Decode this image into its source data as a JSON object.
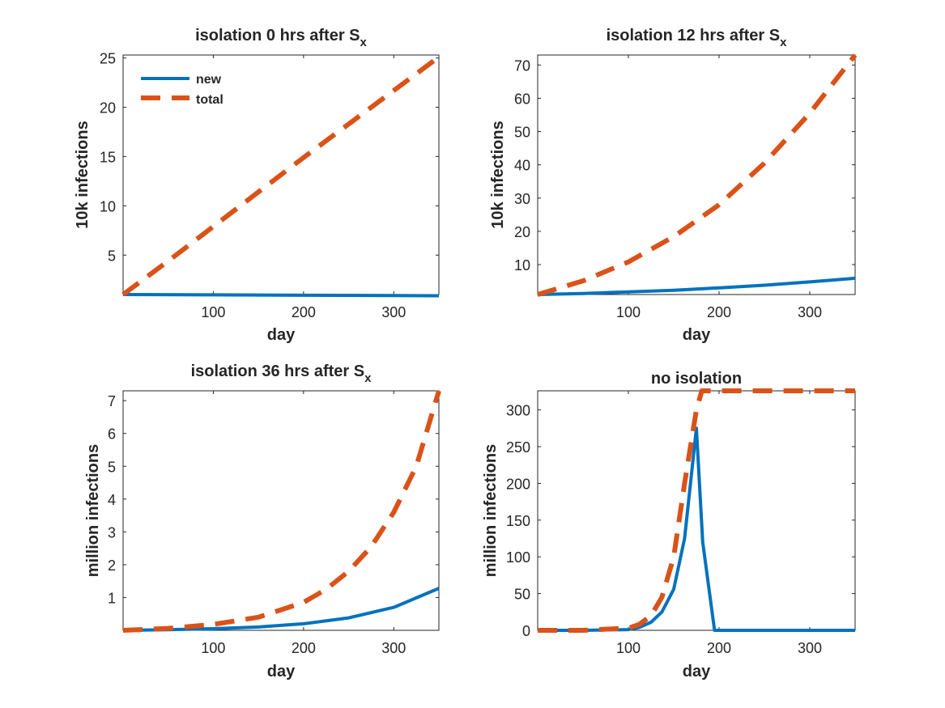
{
  "chart_data": [
    {
      "type": "line",
      "title": "isolation 0 hrs after S",
      "title_subscript": "x",
      "xlabel": "day",
      "ylabel": "10k infections",
      "xlim": [
        0,
        350
      ],
      "ylim": [
        1,
        25.3
      ],
      "xticks": [
        100,
        200,
        300
      ],
      "yticks": [
        5,
        10,
        15,
        20,
        25
      ],
      "legend": {
        "location": "top-left",
        "entries": [
          "new",
          "total"
        ]
      },
      "series": [
        {
          "name": "new",
          "x": [
            0,
            100,
            200,
            300,
            350
          ],
          "values": [
            1.0,
            0.97,
            0.93,
            0.9,
            0.88
          ]
        },
        {
          "name": "total",
          "x": [
            0,
            50,
            100,
            150,
            200,
            250,
            300,
            350
          ],
          "values": [
            1.0,
            4.4,
            7.9,
            11.4,
            14.9,
            18.3,
            21.7,
            25.1
          ]
        }
      ]
    },
    {
      "type": "line",
      "title": "isolation 12 hrs after S",
      "title_subscript": "x",
      "xlabel": "day",
      "ylabel": "10k infections",
      "xlim": [
        0,
        350
      ],
      "ylim": [
        1,
        73
      ],
      "xticks": [
        100,
        200,
        300
      ],
      "yticks": [
        10,
        20,
        30,
        40,
        50,
        60,
        70
      ],
      "series": [
        {
          "name": "new",
          "x": [
            0,
            50,
            100,
            150,
            200,
            250,
            300,
            350
          ],
          "values": [
            1.0,
            1.3,
            1.8,
            2.3,
            3.0,
            3.8,
            4.8,
            5.9
          ]
        },
        {
          "name": "total",
          "x": [
            0,
            50,
            100,
            150,
            200,
            250,
            300,
            350
          ],
          "values": [
            1.0,
            5.1,
            10.8,
            18.4,
            28.0,
            40.5,
            55.5,
            73.0
          ]
        }
      ]
    },
    {
      "type": "line",
      "title": "isolation 36 hrs after S",
      "title_subscript": "x",
      "xlabel": "day",
      "ylabel": "million infections",
      "xlim": [
        0,
        350
      ],
      "ylim": [
        0,
        7.3
      ],
      "xticks": [
        100,
        200,
        300
      ],
      "yticks": [
        1,
        2,
        3,
        4,
        5,
        6,
        7
      ],
      "series": [
        {
          "name": "new",
          "x": [
            0,
            50,
            100,
            150,
            200,
            250,
            300,
            350
          ],
          "values": [
            0.0,
            0.02,
            0.05,
            0.1,
            0.2,
            0.38,
            0.7,
            1.28
          ]
        },
        {
          "name": "total",
          "x": [
            0,
            50,
            100,
            150,
            200,
            225,
            250,
            275,
            300,
            325,
            350
          ],
          "values": [
            0.0,
            0.06,
            0.18,
            0.4,
            0.85,
            1.25,
            1.8,
            2.55,
            3.6,
            5.0,
            7.3
          ]
        }
      ]
    },
    {
      "type": "line",
      "title": "no isolation",
      "xlabel": "day",
      "ylabel": "million infections",
      "xlim": [
        0,
        350
      ],
      "ylim": [
        0,
        326
      ],
      "xticks": [
        100,
        200,
        300
      ],
      "yticks": [
        0,
        50,
        100,
        150,
        200,
        250,
        300
      ],
      "series": [
        {
          "name": "new",
          "x": [
            0,
            50,
            100,
            112,
            125,
            137,
            150,
            162,
            175,
            182,
            195,
            200,
            350
          ],
          "values": [
            0,
            0,
            1,
            4,
            11,
            25,
            56,
            125,
            275,
            120,
            0,
            0,
            0
          ]
        },
        {
          "name": "total",
          "x": [
            0,
            50,
            100,
            112,
            125,
            137,
            150,
            162,
            175,
            181,
            182,
            350
          ],
          "values": [
            0,
            0,
            3,
            8,
            20,
            45,
            100,
            200,
            300,
            326,
            326,
            326
          ]
        }
      ]
    }
  ],
  "colors": {
    "new": "#0072BD",
    "total": "#D95319"
  }
}
